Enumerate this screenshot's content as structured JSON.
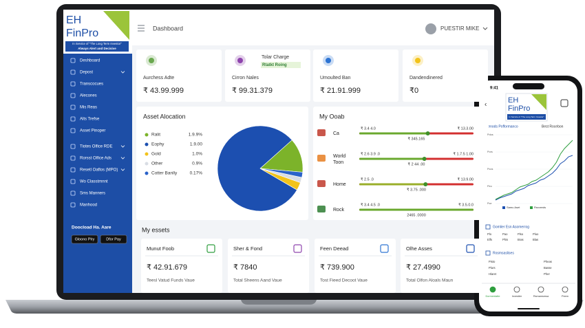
{
  "laptop": {
    "logo": {
      "line1": "EH",
      "line2": "FinPro",
      "tagline": "In Service of \"The Long Term Investor\"",
      "motto": "Always Alert and Decisive"
    },
    "sidebar": {
      "items": [
        {
          "label": "Deshboard",
          "submenu": false
        },
        {
          "label": "Depost",
          "submenu": true
        },
        {
          "label": "Transcocues",
          "submenu": false
        },
        {
          "label": "Alecones",
          "submenu": false
        },
        {
          "label": "Mis Reas",
          "submenu": false
        },
        {
          "label": "Alts Trefse",
          "submenu": false
        },
        {
          "label": "Asset Pinoper",
          "submenu": false
        },
        {
          "label": "Tiotes Olfice RDE",
          "submenu": true
        },
        {
          "label": "Rorsst Olfice Ads",
          "submenu": true
        },
        {
          "label": "Resetl Oaflos (MPO)",
          "submenu": true
        },
        {
          "label": "Wo Classtmnnt",
          "submenu": false
        },
        {
          "label": "Sms Manners",
          "submenu": false
        },
        {
          "label": "Manhood",
          "submenu": false
        }
      ],
      "download_title": "Doocload Ha. Aare",
      "badges": [
        "Gloono Plry",
        "Dfor Pay"
      ]
    },
    "header": {
      "page": "Dashboard",
      "user": "PUESTIR MIKE"
    },
    "stats": [
      {
        "label": "Aurchess Adte",
        "value": "₹ 43.99.999"
      },
      {
        "label": "Cirron Nales",
        "value": "₹ 99.31.379",
        "note": "Tolar Charge",
        "badge": "Rtatkt Roing"
      },
      {
        "label": "Umoulted Ban",
        "value": "₹ 21.91.999"
      },
      {
        "label": "Dandendinered",
        "value": "₹0"
      }
    ],
    "allocation": {
      "title": "Asset Alocation",
      "items": [
        {
          "name": "Ralit",
          "value_label": "1.9.9%",
          "share": 13,
          "color": "#7cb32a"
        },
        {
          "name": "Eophy",
          "value_label": "1.9.00",
          "share": 80,
          "color": "#1c4fb0"
        },
        {
          "name": "Gold",
          "value_label": "1.0%",
          "share": 3,
          "color": "#f2c31b"
        },
        {
          "name": "Other",
          "value_label": "0.9%",
          "share": 2,
          "color": "#d9dde4"
        },
        {
          "name": "Cotter Banlly",
          "value_label": "0.17%",
          "share": 2,
          "color": "#2a62c9"
        }
      ]
    },
    "goals": {
      "title": "My Ooab",
      "items": [
        {
          "name": "Ca",
          "left": "₹ 3.4 4.0",
          "right": "₹ 13.3.00",
          "sub": "₹ 345.165",
          "progress": 60
        },
        {
          "name": "World Toon",
          "left": "₹ 2.6 3.9 .0",
          "right": "₹ 1.7.5 1.00",
          "sub": "₹ 2 44 .00",
          "progress": 57
        },
        {
          "name": "Home",
          "left": "₹ 2.5 .0",
          "right": "₹ 13.9.00",
          "sub": "₹ 3.75 .000",
          "progress": 58
        },
        {
          "name": "Rock",
          "left": "₹ 3.4 4.5 .0",
          "right": "₹ 3.5.0.0",
          "sub": "2465 .0000",
          "progress": 100
        }
      ]
    },
    "assets": {
      "title": "My essets",
      "items": [
        {
          "name": "Munut Foob",
          "value": "₹ 42.91.679",
          "caption": "Teesl Vatud Funds Vaue"
        },
        {
          "name": "Sher & Fond",
          "value": "₹ 7840",
          "caption": "Total Sheens Aand Vaue"
        },
        {
          "name": "Feen Deead",
          "value": "₹ 739.900",
          "caption": "Tost Fieed Decoot Vaue"
        },
        {
          "name": "Olhe Asses",
          "value": "₹ 27.4990",
          "caption": "Total Olfon Aloals Maun"
        }
      ]
    }
  },
  "phone": {
    "time": "9:41",
    "logo": {
      "line1": "EH",
      "line2": "FinPro",
      "tagline": "In Service of \"The Long Term Investor\""
    },
    "chart": {
      "title": "Penods Pofformanco",
      "subtitle": "Best Rocebon",
      "axis_labels": [
        "Pdos",
        "Pors",
        "Pcos",
        "Peo",
        "Pce"
      ],
      "ylim": [
        0,
        100
      ],
      "series": [
        {
          "name": "Samu Aset",
          "color": "#1c4fb0",
          "values": [
            5,
            8,
            10,
            12,
            14,
            18,
            20,
            22,
            26,
            28,
            30,
            34,
            36,
            40,
            44,
            50,
            58,
            62,
            68,
            70
          ]
        },
        {
          "name": "Rsroeeds",
          "color": "#2e9e3e",
          "values": [
            6,
            9,
            12,
            14,
            16,
            20,
            24,
            26,
            28,
            32,
            34,
            38,
            42,
            46,
            52,
            60,
            72,
            80,
            86,
            92
          ]
        }
      ]
    },
    "section1": {
      "title": "Gomlier Esn Asomerrog",
      "rows": [
        [
          "Plo",
          "Pao",
          "Plso",
          "Pluo"
        ],
        [
          "Elfs",
          "Phis",
          "Bras",
          "Blas"
        ]
      ]
    },
    "section2": {
      "title": "Rosmsaslises",
      "rows": [
        [
          "Pisto",
          "Pheas"
        ],
        [
          "Plurs",
          "Basse"
        ],
        [
          "Hlaret",
          "Pher"
        ]
      ]
    },
    "nav": [
      "Dormentatte",
      "Investier",
      "Rsmamsmsa",
      "Peem"
    ]
  }
}
